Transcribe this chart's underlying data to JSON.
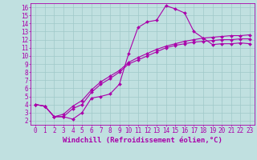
{
  "bg_color": "#c0e0e0",
  "line_color": "#aa00aa",
  "grid_color": "#a0c8c8",
  "spine_color": "#aa00aa",
  "xlim": [
    -0.5,
    23.5
  ],
  "ylim": [
    1.5,
    16.5
  ],
  "xticks": [
    0,
    1,
    2,
    3,
    4,
    5,
    6,
    7,
    8,
    9,
    10,
    11,
    12,
    13,
    14,
    15,
    16,
    17,
    18,
    19,
    20,
    21,
    22,
    23
  ],
  "yticks": [
    2,
    3,
    4,
    5,
    6,
    7,
    8,
    9,
    10,
    11,
    12,
    13,
    14,
    15,
    16
  ],
  "xlabel": "Windchill (Refroidissement éolien,°C)",
  "tick_fontsize": 5.5,
  "xlabel_fontsize": 6.5,
  "line1_x": [
    0,
    1,
    2,
    3,
    4,
    5,
    6,
    7,
    8,
    9,
    10,
    11,
    12,
    13,
    14,
    15,
    16,
    17,
    18,
    19,
    20,
    21,
    22,
    23
  ],
  "line1_y": [
    4.0,
    3.8,
    2.5,
    2.5,
    2.2,
    3.0,
    4.8,
    5.0,
    5.3,
    6.5,
    10.3,
    13.5,
    14.2,
    14.4,
    16.2,
    15.8,
    15.3,
    13.0,
    12.2,
    11.4,
    11.5,
    11.5,
    11.6,
    11.5
  ],
  "line2_x": [
    0,
    1,
    2,
    3,
    4,
    5,
    6,
    7,
    8,
    9,
    10,
    11,
    12,
    13,
    14,
    15,
    16,
    17,
    18,
    19,
    20,
    21,
    22,
    23
  ],
  "line2_y": [
    4.0,
    3.8,
    2.5,
    2.5,
    3.5,
    4.0,
    5.5,
    6.5,
    7.2,
    8.0,
    9.0,
    9.5,
    10.0,
    10.5,
    11.0,
    11.3,
    11.5,
    11.7,
    11.8,
    11.9,
    12.0,
    12.0,
    12.1,
    12.1
  ],
  "line3_x": [
    0,
    1,
    2,
    3,
    4,
    5,
    6,
    7,
    8,
    9,
    10,
    11,
    12,
    13,
    14,
    15,
    16,
    17,
    18,
    19,
    20,
    21,
    22,
    23
  ],
  "line3_y": [
    4.0,
    3.8,
    2.5,
    2.8,
    3.8,
    4.5,
    5.8,
    6.8,
    7.5,
    8.2,
    9.2,
    9.8,
    10.3,
    10.8,
    11.2,
    11.5,
    11.8,
    12.0,
    12.2,
    12.3,
    12.4,
    12.5,
    12.5,
    12.6
  ],
  "linewidth": 0.8,
  "marker": "D",
  "marker_size": 2.0
}
